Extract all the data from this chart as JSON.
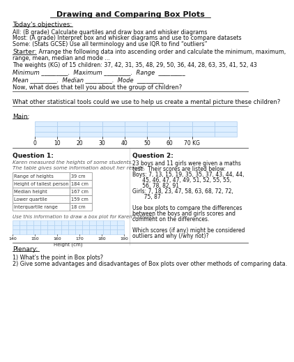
{
  "title": "Drawing and Comparing Box Plots",
  "bg_color": "#ffffff",
  "font_color": "#222222",
  "sections": {
    "objectives_header": "Today's objectives:",
    "objectives": [
      "All: (B grade) Calculate quartiles and draw box and whisker diagrams",
      "Most: (A grade) Interpret box and whisker diagrams and use to compare datasets",
      "Some: (Stats GCSE) Use all terminology and use IQR to find “outliers”"
    ],
    "starter_label": "Starter:",
    "starter_cont": " Arrange the following data into ascending order and calculate the minimum, maximum,",
    "starter_cont2": "range, mean, median and mode ...",
    "weights_text": "The weights (KG) of 15 children: 37, 42, 31, 35, 48, 29, 50, 36, 44, 28, 63, 35, 41, 52, 43",
    "min_max_line": "Minimum _________.  Maximum _________.  Range  _________",
    "mean_med_line": "Mean _________.  Median _________.  Mode  _________",
    "question_children": "Now, what does that tell you about the group of children?",
    "separator_question": "What other statistical tools could we use to help us create a mental picture these children?",
    "main_label": "Main:",
    "axis_labels": [
      "0",
      "10",
      "20",
      "30",
      "40",
      "50",
      "60",
      "70 KG"
    ],
    "q1_header": "Question 1:",
    "q1_intro1": "Karen measured the heights of some students.",
    "q1_intro2": "The table gives some information about her results.",
    "q1_table": [
      [
        "Range of heights",
        "39 cm"
      ],
      [
        "Height of tallest person",
        "184 cm"
      ],
      [
        "Median height",
        "167 cm"
      ],
      [
        "Lower quartile",
        "159 cm"
      ],
      [
        "Interquartile range",
        "18 cm"
      ]
    ],
    "q1_instruction": "Use this information to draw a box plot for Karen's results.",
    "sg_axis": [
      140,
      150,
      160,
      170,
      180,
      190
    ],
    "sg_axis_label": "Height (cm)",
    "q2_header": "Question 2:",
    "q2_lines": [
      "23 boys and 11 girls were given a maths",
      "test.  Their scores are listed below:",
      "Boys: 7, 13, 15, 19, 35, 35, 37, 43, 44, 44,",
      "      45, 46, 47, 47, 49, 51, 52, 55, 55,",
      "      56, 78, 82, 91",
      "Girls: 7, 18, 23, 47, 58, 63, 68, 72, 72,",
      "       75, 87",
      "",
      "Use box plots to compare the differences",
      "between the boys and girls scores and",
      "comment on the differences.",
      "",
      "Which scores (if any) might be considered",
      "outliers and why (/why not)?"
    ],
    "plenary_header": "Plenary:",
    "plenary1": "1) What's the point in Box plots?",
    "plenary2": "2) Give some advantages and disadvantages of Box plots over other methods of comparing data."
  }
}
